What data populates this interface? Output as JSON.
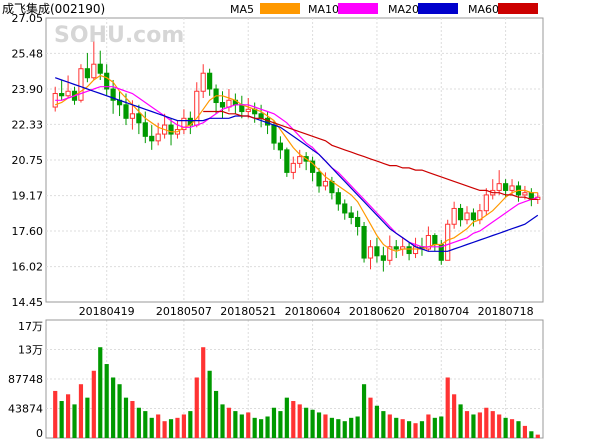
{
  "header": {
    "stock_label": "成飞集成(002190)",
    "legend": [
      {
        "name": "MA5",
        "color": "#ff9900"
      },
      {
        "name": "MA10",
        "color": "#ff00ff"
      },
      {
        "name": "MA20",
        "color": "#0000cc"
      },
      {
        "name": "MA60",
        "color": "#cc0000"
      }
    ]
  },
  "watermark": "SOHU.com",
  "colors": {
    "up": "#ff3333",
    "down": "#009900",
    "grid": "#dddddd",
    "frame": "#999999"
  },
  "chart_data": [
    {
      "type": "candlestick",
      "title": "",
      "y_ticks": [
        "27.05",
        "25.48",
        "23.90",
        "22.33",
        "20.75",
        "19.17",
        "17.60",
        "16.02",
        "14.45"
      ],
      "ylim": [
        14.45,
        27.05
      ],
      "x_ticks": [
        "20180419",
        "20180507",
        "20180521",
        "20180604",
        "20180620",
        "20180704",
        "20180718"
      ],
      "x_tick_index": [
        8,
        20,
        30,
        40,
        50,
        60,
        70
      ],
      "candles": [
        [
          23.1,
          23.7,
          24.0,
          22.9
        ],
        [
          23.7,
          23.6,
          24.3,
          23.4
        ],
        [
          23.6,
          23.8,
          24.5,
          23.5
        ],
        [
          23.8,
          23.4,
          24.0,
          23.2
        ],
        [
          23.4,
          24.8,
          25.0,
          23.3
        ],
        [
          24.8,
          24.4,
          25.5,
          24.2
        ],
        [
          24.4,
          25.0,
          26.0,
          24.3
        ],
        [
          25.0,
          24.6,
          25.6,
          24.3
        ],
        [
          24.6,
          23.9,
          25.0,
          23.6
        ],
        [
          23.9,
          23.4,
          24.3,
          22.8
        ],
        [
          23.4,
          23.2,
          23.8,
          22.7
        ],
        [
          23.2,
          22.6,
          23.7,
          22.3
        ],
        [
          22.6,
          22.8,
          23.4,
          22.1
        ],
        [
          22.8,
          22.4,
          23.2,
          21.9
        ],
        [
          22.4,
          21.8,
          22.9,
          21.5
        ],
        [
          21.8,
          21.6,
          22.3,
          21.2
        ],
        [
          21.6,
          21.9,
          22.4,
          21.4
        ],
        [
          21.9,
          22.3,
          22.8,
          21.7
        ],
        [
          22.3,
          21.9,
          22.6,
          21.4
        ],
        [
          21.9,
          22.1,
          22.5,
          21.7
        ],
        [
          22.1,
          22.6,
          23.0,
          21.9
        ],
        [
          22.6,
          22.3,
          22.9,
          21.9
        ],
        [
          22.3,
          23.8,
          24.2,
          22.2
        ],
        [
          23.8,
          24.6,
          25.0,
          23.5
        ],
        [
          24.6,
          23.9,
          24.8,
          23.6
        ],
        [
          23.9,
          23.3,
          24.1,
          22.8
        ],
        [
          23.3,
          23.1,
          23.8,
          22.6
        ],
        [
          23.1,
          23.4,
          23.9,
          22.9
        ],
        [
          23.4,
          23.2,
          23.7,
          22.8
        ],
        [
          23.2,
          22.9,
          23.6,
          22.6
        ],
        [
          22.9,
          23.0,
          23.5,
          22.6
        ],
        [
          23.0,
          22.8,
          23.3,
          22.4
        ],
        [
          22.8,
          22.6,
          23.2,
          22.2
        ],
        [
          22.6,
          22.3,
          22.9,
          21.9
        ],
        [
          22.3,
          21.5,
          22.5,
          21.2
        ],
        [
          21.5,
          21.2,
          21.8,
          20.8
        ],
        [
          21.2,
          20.2,
          21.3,
          20.0
        ],
        [
          20.2,
          20.6,
          20.9,
          19.9
        ],
        [
          20.6,
          20.9,
          21.2,
          20.4
        ],
        [
          20.9,
          20.7,
          21.1,
          20.3
        ],
        [
          20.7,
          20.2,
          20.9,
          19.8
        ],
        [
          20.2,
          19.6,
          20.4,
          19.3
        ],
        [
          19.6,
          19.8,
          20.2,
          19.4
        ],
        [
          19.8,
          19.3,
          20.0,
          19.0
        ],
        [
          19.3,
          18.8,
          19.5,
          18.5
        ],
        [
          18.8,
          18.4,
          19.0,
          18.1
        ],
        [
          18.4,
          18.2,
          18.7,
          17.9
        ],
        [
          18.2,
          17.8,
          18.5,
          17.4
        ],
        [
          17.8,
          16.4,
          18.0,
          16.2
        ],
        [
          16.4,
          16.9,
          17.2,
          15.9
        ],
        [
          16.9,
          16.5,
          17.3,
          16.2
        ],
        [
          16.5,
          16.3,
          16.9,
          15.8
        ],
        [
          16.3,
          16.9,
          17.4,
          16.1
        ],
        [
          16.9,
          16.8,
          17.2,
          16.4
        ],
        [
          16.8,
          16.9,
          17.3,
          16.5
        ],
        [
          16.9,
          16.6,
          17.1,
          16.3
        ],
        [
          16.6,
          16.9,
          17.3,
          16.4
        ],
        [
          16.9,
          16.8,
          17.3,
          16.5
        ],
        [
          16.8,
          17.4,
          17.8,
          16.7
        ],
        [
          17.4,
          17.0,
          17.5,
          16.7
        ],
        [
          17.0,
          16.3,
          17.2,
          16.1
        ],
        [
          16.3,
          17.9,
          18.1,
          16.3
        ],
        [
          17.9,
          18.6,
          18.9,
          17.7
        ],
        [
          18.6,
          18.1,
          18.8,
          17.8
        ],
        [
          18.1,
          18.4,
          18.7,
          17.9
        ],
        [
          18.4,
          18.1,
          18.6,
          17.8
        ],
        [
          18.1,
          18.5,
          18.8,
          17.9
        ],
        [
          18.5,
          19.2,
          19.5,
          18.3
        ],
        [
          19.2,
          19.4,
          19.9,
          19.0
        ],
        [
          19.4,
          19.7,
          20.3,
          19.2
        ],
        [
          19.7,
          19.4,
          19.9,
          19.1
        ],
        [
          19.4,
          19.6,
          19.9,
          19.2
        ],
        [
          19.6,
          19.2,
          19.8,
          18.9
        ],
        [
          19.2,
          19.3,
          19.6,
          19.0
        ],
        [
          19.3,
          19.0,
          19.5,
          18.7
        ],
        [
          19.0,
          19.1,
          19.3,
          18.8
        ]
      ],
      "ma5": [
        23.2,
        23.3,
        23.5,
        23.6,
        23.8,
        24.0,
        24.3,
        24.5,
        24.4,
        24.2,
        23.8,
        23.5,
        23.2,
        22.9,
        22.6,
        22.4,
        22.2,
        22.1,
        22.0,
        22.0,
        22.2,
        22.3,
        22.6,
        23.0,
        23.4,
        23.6,
        23.6,
        23.5,
        23.4,
        23.2,
        23.1,
        23.0,
        22.9,
        22.7,
        22.5,
        22.1,
        21.7,
        21.3,
        21.0,
        20.8,
        20.6,
        20.3,
        20.0,
        19.8,
        19.6,
        19.4,
        19.2,
        18.9,
        18.4,
        17.9,
        17.4,
        17.0,
        16.8,
        16.7,
        16.8,
        16.8,
        16.8,
        16.8,
        16.9,
        17.0,
        17.0,
        17.2,
        17.3,
        17.5,
        17.7,
        18.0,
        18.1,
        18.3,
        18.5,
        18.8,
        19.1,
        19.3,
        19.4,
        19.4,
        19.3,
        19.3
      ],
      "ma10": [
        23.4,
        23.4,
        23.5,
        23.6,
        23.7,
        23.8,
        23.9,
        24.0,
        24.0,
        24.0,
        23.9,
        23.8,
        23.7,
        23.5,
        23.3,
        23.1,
        22.9,
        22.7,
        22.5,
        22.3,
        22.2,
        22.2,
        22.3,
        22.4,
        22.6,
        22.8,
        23.0,
        23.1,
        23.2,
        23.2,
        23.2,
        23.1,
        23.0,
        22.9,
        22.8,
        22.6,
        22.4,
        22.1,
        21.8,
        21.5,
        21.3,
        21.0,
        20.7,
        20.4,
        20.2,
        19.9,
        19.6,
        19.3,
        19.0,
        18.7,
        18.4,
        18.1,
        17.8,
        17.5,
        17.3,
        17.1,
        17.0,
        16.9,
        16.9,
        16.9,
        16.9,
        17.0,
        17.1,
        17.2,
        17.3,
        17.5,
        17.6,
        17.8,
        18.0,
        18.2,
        18.4,
        18.6,
        18.8,
        18.9,
        19.0,
        19.1
      ],
      "ma20": [
        24.4,
        24.3,
        24.2,
        24.1,
        24.0,
        23.9,
        23.8,
        23.7,
        23.6,
        23.5,
        23.4,
        23.3,
        23.2,
        23.1,
        23.0,
        22.9,
        22.8,
        22.7,
        22.6,
        22.5,
        22.5,
        22.5,
        22.5,
        22.5,
        22.6,
        22.6,
        22.6,
        22.6,
        22.7,
        22.7,
        22.7,
        22.6,
        22.5,
        22.4,
        22.3,
        22.2,
        22.0,
        21.8,
        21.6,
        21.4,
        21.2,
        21.0,
        20.7,
        20.4,
        20.1,
        19.8,
        19.5,
        19.2,
        18.9,
        18.6,
        18.3,
        18.0,
        17.7,
        17.5,
        17.3,
        17.1,
        16.9,
        16.8,
        16.7,
        16.7,
        16.7,
        16.7,
        16.8,
        16.9,
        17.0,
        17.1,
        17.2,
        17.3,
        17.4,
        17.5,
        17.6,
        17.7,
        17.8,
        17.9,
        18.1,
        18.3
      ],
      "ma60": [
        null,
        null,
        null,
        null,
        null,
        null,
        null,
        null,
        null,
        null,
        null,
        null,
        null,
        null,
        null,
        null,
        null,
        null,
        null,
        null,
        null,
        null,
        null,
        22.9,
        22.9,
        22.9,
        22.9,
        22.8,
        22.8,
        22.7,
        22.7,
        22.6,
        22.6,
        22.5,
        22.4,
        22.3,
        22.2,
        22.1,
        22.0,
        21.9,
        21.8,
        21.7,
        21.6,
        21.4,
        21.3,
        21.2,
        21.1,
        21.0,
        20.9,
        20.8,
        20.7,
        20.6,
        20.5,
        20.5,
        20.4,
        20.4,
        20.3,
        20.3,
        20.2,
        20.1,
        20.0,
        19.9,
        19.8,
        19.7,
        19.6,
        19.5,
        19.4,
        19.4,
        19.3,
        19.3,
        19.2,
        19.2,
        19.1,
        19.1,
        19.0,
        19.0
      ]
    },
    {
      "type": "bar",
      "title": "",
      "y_ticks": [
        "17万",
        "13万",
        "87748",
        "43874",
        "0"
      ],
      "y_tick_values": [
        175496,
        131622,
        87748,
        43874,
        0
      ],
      "ylim": [
        0,
        175496
      ],
      "volumes": [
        70000,
        55000,
        65000,
        50000,
        80000,
        60000,
        100000,
        135000,
        110000,
        90000,
        80000,
        60000,
        55000,
        45000,
        40000,
        30000,
        35000,
        25000,
        28000,
        30000,
        35000,
        40000,
        90000,
        135000,
        100000,
        70000,
        50000,
        45000,
        40000,
        35000,
        38000,
        30000,
        28000,
        32000,
        45000,
        40000,
        60000,
        55000,
        50000,
        45000,
        42000,
        38000,
        35000,
        30000,
        28000,
        25000,
        30000,
        32000,
        80000,
        60000,
        48000,
        40000,
        35000,
        30000,
        28000,
        25000,
        22000,
        25000,
        35000,
        30000,
        32000,
        90000,
        65000,
        50000,
        40000,
        35000,
        38000,
        45000,
        40000,
        35000,
        30000,
        28000,
        25000,
        18000,
        10000,
        5000
      ]
    }
  ]
}
